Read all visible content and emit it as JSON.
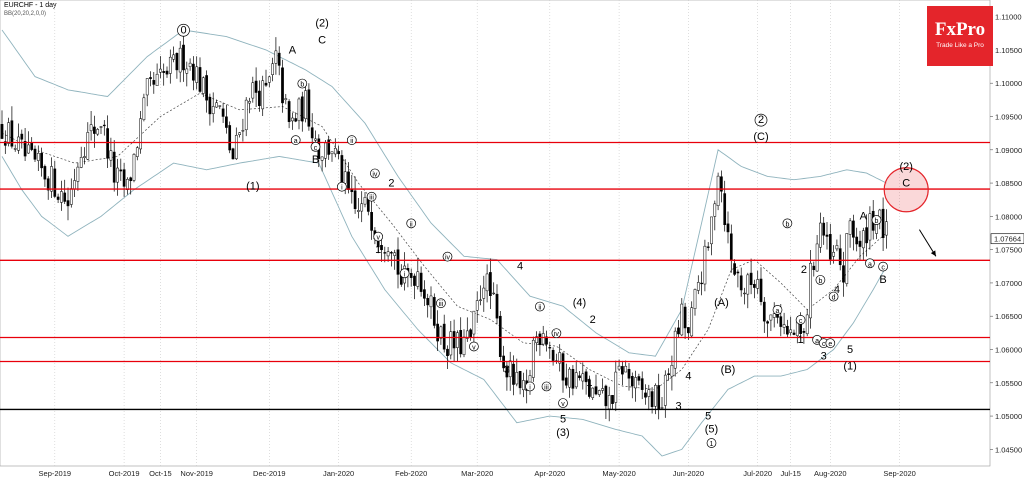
{
  "header": {
    "symbol": "EURCHF - 1 day",
    "indicator": "BB(20,20,2,0,0)"
  },
  "logo": {
    "brand": "FxPro",
    "tagline": "Trade Like a Pro"
  },
  "colors": {
    "resistance": "#e8000b",
    "support": "#000000",
    "band": "#8fb3bd",
    "bull": "#ffffff",
    "bear": "#000000",
    "highlight": "#e4252b"
  },
  "chart_data": {
    "type": "candlestick",
    "title": "",
    "ylim": [
      1.0425,
      1.1125
    ],
    "yticks": [
      "1.04500",
      "1.05000",
      "1.05500",
      "1.06000",
      "1.06500",
      "1.07000",
      "1.07500",
      "1.08000",
      "1.08500",
      "1.09000",
      "1.09500",
      "1.10000",
      "1.10500",
      "1.11000"
    ],
    "ytick_values": [
      1.045,
      1.05,
      1.055,
      1.06,
      1.065,
      1.07,
      1.075,
      1.08,
      1.085,
      1.09,
      1.095,
      1.1,
      1.105,
      1.11
    ],
    "xticks": [
      {
        "label": "Sep-2019",
        "bar": 16
      },
      {
        "label": "Oct-2019",
        "bar": 37
      },
      {
        "label": "Oct-15",
        "bar": 48
      },
      {
        "label": "Nov-2019",
        "bar": 59
      },
      {
        "label": "Dec-2019",
        "bar": 81
      },
      {
        "label": "Jan-2020",
        "bar": 102
      },
      {
        "label": "Feb-2020",
        "bar": 124
      },
      {
        "label": "Mar-2020",
        "bar": 144
      },
      {
        "label": "Apr-2020",
        "bar": 166
      },
      {
        "label": "May-2020",
        "bar": 187
      },
      {
        "label": "Jun-2020",
        "bar": 208
      },
      {
        "label": "Jul-2020",
        "bar": 229
      },
      {
        "label": "Jul-15",
        "bar": 239
      },
      {
        "label": "Aug-2020",
        "bar": 251
      },
      {
        "label": "Sep-2020",
        "bar": 272
      }
    ],
    "last_price": "1.07664",
    "last_price_value": 1.07664,
    "total_bars": 300,
    "horizontal_levels": [
      {
        "value": 1.0911,
        "kind": "resistance"
      },
      {
        "value": 1.0841,
        "kind": "resistance"
      },
      {
        "value": 1.0734,
        "kind": "resistance"
      },
      {
        "value": 1.0618,
        "kind": "resistance"
      },
      {
        "value": 1.0582,
        "kind": "resistance"
      },
      {
        "value": 1.051,
        "kind": "support"
      }
    ],
    "path": [
      [
        0,
        1.0935
      ],
      [
        7,
        1.089
      ],
      [
        15,
        1.0855
      ],
      [
        20,
        1.082
      ],
      [
        24,
        1.0905
      ],
      [
        30,
        1.0945
      ],
      [
        34,
        1.086
      ],
      [
        38,
        1.084
      ],
      [
        44,
        1.0985
      ],
      [
        50,
        1.1015
      ],
      [
        55,
        1.104
      ],
      [
        58,
        1.1025
      ],
      [
        62,
        1.098
      ],
      [
        66,
        1.096
      ],
      [
        70,
        1.0885
      ],
      [
        75,
        1.099
      ],
      [
        80,
        1.0985
      ],
      [
        83,
        1.1035
      ],
      [
        87,
        1.0935
      ],
      [
        92,
        1.097
      ],
      [
        96,
        1.09
      ],
      [
        100,
        1.0905
      ],
      [
        104,
        1.0845
      ],
      [
        107,
        1.0805
      ],
      [
        111,
        1.0815
      ],
      [
        114,
        1.077
      ],
      [
        118,
        1.0765
      ],
      [
        121,
        1.07
      ],
      [
        126,
        1.072
      ],
      [
        130,
        1.066
      ],
      [
        134,
        1.061
      ],
      [
        138,
        1.0605
      ],
      [
        142,
        1.0615
      ],
      [
        146,
        1.071
      ],
      [
        149,
        1.0665
      ],
      [
        152,
        1.058
      ],
      [
        156,
        1.0545
      ],
      [
        159,
        1.0525
      ],
      [
        161,
        1.061
      ],
      [
        164,
        1.0635
      ],
      [
        167,
        1.059
      ],
      [
        171,
        1.056
      ],
      [
        175,
        1.0555
      ],
      [
        180,
        1.0525
      ],
      [
        184,
        1.052
      ],
      [
        188,
        1.0575
      ],
      [
        192,
        1.054
      ],
      [
        196,
        1.053
      ],
      [
        200,
        1.052
      ],
      [
        203,
        1.059
      ],
      [
        206,
        1.065
      ],
      [
        208,
        1.062
      ],
      [
        211,
        1.07
      ],
      [
        214,
        1.075
      ],
      [
        217,
        1.0875
      ],
      [
        219,
        1.0805
      ],
      [
        221,
        1.073
      ],
      [
        225,
        1.069
      ],
      [
        229,
        1.071
      ],
      [
        232,
        1.064
      ],
      [
        235,
        1.066
      ],
      [
        238,
        1.062
      ],
      [
        241,
        1.0625
      ],
      [
        243,
        1.0615
      ],
      [
        245,
        1.071
      ],
      [
        248,
        1.079
      ],
      [
        251,
        1.073
      ],
      [
        253,
        1.0745
      ],
      [
        255,
        1.071
      ],
      [
        257,
        1.0795
      ],
      [
        260,
        1.0745
      ],
      [
        263,
        1.08
      ],
      [
        266,
        1.079
      ],
      [
        268,
        1.077
      ]
    ],
    "moving_average": [
      [
        0,
        1.0925
      ],
      [
        10,
        1.09
      ],
      [
        22,
        1.088
      ],
      [
        35,
        1.089
      ],
      [
        48,
        1.095
      ],
      [
        60,
        1.0985
      ],
      [
        72,
        1.096
      ],
      [
        85,
        1.0965
      ],
      [
        97,
        1.0935
      ],
      [
        108,
        1.085
      ],
      [
        118,
        1.079
      ],
      [
        128,
        1.0725
      ],
      [
        138,
        1.0665
      ],
      [
        148,
        1.0645
      ],
      [
        158,
        1.061
      ],
      [
        168,
        1.0605
      ],
      [
        178,
        1.057
      ],
      [
        188,
        1.0545
      ],
      [
        198,
        1.054
      ],
      [
        206,
        1.057
      ],
      [
        214,
        1.063
      ],
      [
        221,
        1.072
      ],
      [
        228,
        1.0735
      ],
      [
        236,
        1.07
      ],
      [
        244,
        1.066
      ],
      [
        252,
        1.069
      ],
      [
        260,
        1.074
      ],
      [
        268,
        1.0775
      ]
    ],
    "upper_band": [
      [
        0,
        1.108
      ],
      [
        10,
        1.101
      ],
      [
        20,
        1.099
      ],
      [
        32,
        1.098
      ],
      [
        44,
        1.104
      ],
      [
        55,
        1.108
      ],
      [
        68,
        1.107
      ],
      [
        80,
        1.105
      ],
      [
        92,
        1.102
      ],
      [
        100,
        1.0995
      ],
      [
        110,
        1.094
      ],
      [
        120,
        1.086
      ],
      [
        130,
        1.079
      ],
      [
        140,
        1.074
      ],
      [
        150,
        1.0735
      ],
      [
        160,
        1.068
      ],
      [
        170,
        1.0665
      ],
      [
        180,
        1.0625
      ],
      [
        190,
        1.0595
      ],
      [
        198,
        1.059
      ],
      [
        206,
        1.066
      ],
      [
        212,
        1.079
      ],
      [
        217,
        1.09
      ],
      [
        224,
        1.0875
      ],
      [
        232,
        1.086
      ],
      [
        240,
        1.0855
      ],
      [
        248,
        1.086
      ],
      [
        256,
        1.087
      ],
      [
        262,
        1.0865
      ],
      [
        268,
        1.085
      ]
    ],
    "lower_band": [
      [
        0,
        1.089
      ],
      [
        6,
        1.084
      ],
      [
        12,
        1.08
      ],
      [
        20,
        1.077
      ],
      [
        30,
        1.08
      ],
      [
        40,
        1.084
      ],
      [
        52,
        1.088
      ],
      [
        62,
        1.087
      ],
      [
        72,
        1.088
      ],
      [
        84,
        1.089
      ],
      [
        96,
        1.088
      ],
      [
        106,
        1.077
      ],
      [
        116,
        1.069
      ],
      [
        126,
        1.063
      ],
      [
        136,
        1.058
      ],
      [
        146,
        1.0555
      ],
      [
        156,
        1.049
      ],
      [
        166,
        1.05
      ],
      [
        176,
        1.0495
      ],
      [
        186,
        1.048
      ],
      [
        194,
        1.047
      ],
      [
        200,
        1.044
      ],
      [
        206,
        1.045
      ],
      [
        212,
        1.049
      ],
      [
        220,
        1.054
      ],
      [
        228,
        1.056
      ],
      [
        236,
        1.056
      ],
      [
        244,
        1.057
      ],
      [
        252,
        1.06
      ],
      [
        258,
        1.064
      ],
      [
        264,
        1.069
      ],
      [
        268,
        1.0725
      ]
    ],
    "annotations": [
      {
        "text": "0",
        "bar": 55,
        "price": 1.1075,
        "circled": true,
        "size": "big"
      },
      {
        "text": "(2)",
        "bar": 97,
        "price": 1.1085,
        "circled": false,
        "size": "big"
      },
      {
        "text": "C",
        "bar": 97,
        "price": 1.106,
        "circled": false,
        "size": "big"
      },
      {
        "text": "A",
        "bar": 88,
        "price": 1.1045,
        "circled": false,
        "size": "big"
      },
      {
        "text": "b",
        "bar": 91,
        "price": 1.0995,
        "circled": true,
        "size": "small"
      },
      {
        "text": "a",
        "bar": 89,
        "price": 1.091,
        "circled": true,
        "size": "small"
      },
      {
        "text": "c",
        "bar": 95,
        "price": 1.09,
        "circled": true,
        "size": "small"
      },
      {
        "text": "B",
        "bar": 95,
        "price": 1.088,
        "circled": false,
        "size": "big"
      },
      {
        "text": "(1)",
        "bar": 76,
        "price": 1.084,
        "circled": false,
        "size": "big"
      },
      {
        "text": "ii",
        "bar": 106,
        "price": 1.091,
        "circled": true,
        "size": "small"
      },
      {
        "text": "iv",
        "bar": 113,
        "price": 1.086,
        "circled": true,
        "size": "small"
      },
      {
        "text": "i",
        "bar": 103,
        "price": 1.084,
        "circled": true,
        "size": "small"
      },
      {
        "text": "iii",
        "bar": 112,
        "price": 1.0825,
        "circled": true,
        "size": "small"
      },
      {
        "text": "2",
        "bar": 118,
        "price": 1.0845,
        "circled": false,
        "size": "big"
      },
      {
        "text": "v",
        "bar": 114,
        "price": 1.0765,
        "circled": true,
        "size": "small"
      },
      {
        "text": "1",
        "bar": 114,
        "price": 1.0745,
        "circled": false,
        "size": "big"
      },
      {
        "text": "ii",
        "bar": 124,
        "price": 1.0785,
        "circled": true,
        "size": "small"
      },
      {
        "text": "iv",
        "bar": 135,
        "price": 1.0735,
        "circled": true,
        "size": "small"
      },
      {
        "text": "i",
        "bar": 122,
        "price": 1.071,
        "circled": true,
        "size": "small"
      },
      {
        "text": "iii",
        "bar": 133,
        "price": 1.0665,
        "circled": true,
        "size": "small"
      },
      {
        "text": "v",
        "bar": 143,
        "price": 1.06,
        "circled": true,
        "size": "small"
      },
      {
        "text": "3",
        "bar": 153,
        "price": 1.0565,
        "circled": false,
        "size": "big"
      },
      {
        "text": "4",
        "bar": 157,
        "price": 1.072,
        "circled": false,
        "size": "big"
      },
      {
        "text": "ii",
        "bar": 163,
        "price": 1.066,
        "circled": true,
        "size": "small"
      },
      {
        "text": "iv",
        "bar": 168,
        "price": 1.062,
        "circled": true,
        "size": "small"
      },
      {
        "text": "i",
        "bar": 160,
        "price": 1.054,
        "circled": true,
        "size": "small"
      },
      {
        "text": "iii",
        "bar": 165,
        "price": 1.054,
        "circled": true,
        "size": "small"
      },
      {
        "text": "v",
        "bar": 170,
        "price": 1.0515,
        "circled": true,
        "size": "small"
      },
      {
        "text": "5",
        "bar": 170,
        "price": 1.049,
        "circled": false,
        "size": "big"
      },
      {
        "text": "(3)",
        "bar": 170,
        "price": 1.047,
        "circled": false,
        "size": "big"
      },
      {
        "text": "(4)",
        "bar": 175,
        "price": 1.0665,
        "circled": false,
        "size": "big"
      },
      {
        "text": "2",
        "bar": 179,
        "price": 1.064,
        "circled": false,
        "size": "big"
      },
      {
        "text": "1",
        "bar": 178,
        "price": 1.0545,
        "circled": false,
        "size": "big"
      },
      {
        "text": "4",
        "bar": 208,
        "price": 1.0555,
        "circled": false,
        "size": "big"
      },
      {
        "text": "3",
        "bar": 205,
        "price": 1.051,
        "circled": false,
        "size": "big"
      },
      {
        "text": "5",
        "bar": 214,
        "price": 1.0495,
        "circled": false,
        "size": "big"
      },
      {
        "text": "(5)",
        "bar": 215,
        "price": 1.0475,
        "circled": false,
        "size": "big"
      },
      {
        "text": "1",
        "bar": 215,
        "price": 1.0455,
        "circled": true,
        "size": "small"
      },
      {
        "text": "(A)",
        "bar": 218,
        "price": 1.0665,
        "circled": false,
        "size": "big"
      },
      {
        "text": "(B)",
        "bar": 220,
        "price": 1.0565,
        "circled": false,
        "size": "big"
      },
      {
        "text": "2",
        "bar": 230,
        "price": 1.094,
        "circled": true,
        "size": "big"
      },
      {
        "text": "(C)",
        "bar": 230,
        "price": 1.0915,
        "circled": false,
        "size": "big"
      },
      {
        "text": "b",
        "bar": 238,
        "price": 1.0785,
        "circled": true,
        "size": "small"
      },
      {
        "text": "a",
        "bar": 235,
        "price": 1.0655,
        "circled": true,
        "size": "small"
      },
      {
        "text": "2",
        "bar": 243,
        "price": 1.0715,
        "circled": false,
        "size": "big"
      },
      {
        "text": "b",
        "bar": 248,
        "price": 1.07,
        "circled": true,
        "size": "small"
      },
      {
        "text": "d",
        "bar": 252,
        "price": 1.0675,
        "circled": true,
        "size": "small"
      },
      {
        "text": "4",
        "bar": 253,
        "price": 1.0685,
        "circled": false,
        "size": "big"
      },
      {
        "text": "c",
        "bar": 242,
        "price": 1.064,
        "circled": true,
        "size": "small"
      },
      {
        "text": "1",
        "bar": 242,
        "price": 1.061,
        "circled": false,
        "size": "big"
      },
      {
        "text": "a",
        "bar": 247,
        "price": 1.061,
        "circled": true,
        "size": "small"
      },
      {
        "text": "c",
        "bar": 249,
        "price": 1.0605,
        "circled": true,
        "size": "small"
      },
      {
        "text": "e",
        "bar": 251,
        "price": 1.0605,
        "circled": true,
        "size": "small"
      },
      {
        "text": "3",
        "bar": 249,
        "price": 1.0585,
        "circled": false,
        "size": "big"
      },
      {
        "text": "5",
        "bar": 257,
        "price": 1.0595,
        "circled": false,
        "size": "big"
      },
      {
        "text": "(1)",
        "bar": 257,
        "price": 1.057,
        "circled": false,
        "size": "big"
      },
      {
        "text": "A",
        "bar": 261,
        "price": 1.0795,
        "circled": false,
        "size": "big"
      },
      {
        "text": "b",
        "bar": 265,
        "price": 1.079,
        "circled": true,
        "size": "small"
      },
      {
        "text": "a",
        "bar": 263,
        "price": 1.0725,
        "circled": true,
        "size": "small"
      },
      {
        "text": "c",
        "bar": 267,
        "price": 1.072,
        "circled": true,
        "size": "small"
      },
      {
        "text": "B",
        "bar": 267,
        "price": 1.07,
        "circled": false,
        "size": "big"
      },
      {
        "text": "(2)",
        "bar": 274,
        "price": 1.087,
        "circled": false,
        "size": "big"
      },
      {
        "text": "C",
        "bar": 274,
        "price": 1.0845,
        "circled": false,
        "size": "big"
      }
    ],
    "highlight_circle": {
      "bar": 274,
      "price": 1.084
    },
    "projection_arrow": {
      "from_bar": 278,
      "from_price": 1.078,
      "to_bar": 283,
      "to_price": 1.074
    }
  }
}
